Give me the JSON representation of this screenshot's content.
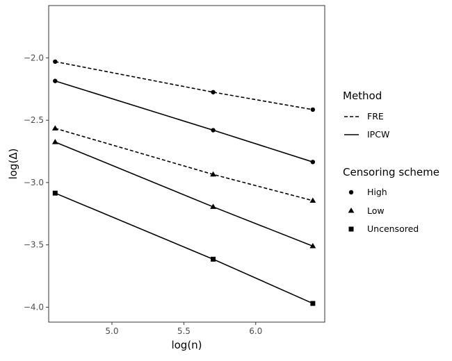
{
  "chart_data": {
    "type": "line",
    "xlabel": "log(n)",
    "ylabel": "log(Δ)",
    "xlim": [
      4.56,
      6.48
    ],
    "ylim": [
      -4.12,
      -1.58
    ],
    "x_ticks": [
      "5.0",
      "5.5",
      "6.0"
    ],
    "y_ticks": [
      "-2.0",
      "-2.5",
      "-3.0",
      "-3.5",
      "-4.0"
    ],
    "x_tick_values": [
      5.0,
      5.5,
      6.0
    ],
    "y_tick_values": [
      -2.0,
      -2.5,
      -3.0,
      -3.5,
      -4.0
    ],
    "grid": false,
    "legend_placement": "right",
    "x": [
      4.605,
      5.704,
      6.397
    ],
    "series": [
      {
        "method": "FRE",
        "scheme": "High",
        "linestyle": "dashed",
        "marker": "circle",
        "values": [
          -2.03,
          -2.275,
          -2.415
        ]
      },
      {
        "method": "IPCW",
        "scheme": "High",
        "linestyle": "solid",
        "marker": "circle",
        "values": [
          -2.185,
          -2.58,
          -2.835
        ]
      },
      {
        "method": "FRE",
        "scheme": "Low",
        "linestyle": "dashed",
        "marker": "triangle",
        "values": [
          -2.565,
          -2.935,
          -3.145
        ]
      },
      {
        "method": "IPCW",
        "scheme": "Low",
        "linestyle": "solid",
        "marker": "triangle",
        "values": [
          -2.675,
          -3.195,
          -3.51
        ]
      },
      {
        "method": "IPCW",
        "scheme": "Uncensored",
        "linestyle": "solid",
        "marker": "square",
        "values": [
          -3.085,
          -3.615,
          -3.97
        ]
      }
    ]
  },
  "legend": {
    "method_title": "Method",
    "method_items": [
      {
        "label": "FRE",
        "linestyle": "dashed"
      },
      {
        "label": "IPCW",
        "linestyle": "solid"
      }
    ],
    "scheme_title": "Censoring scheme",
    "scheme_items": [
      {
        "label": "High",
        "marker": "circle"
      },
      {
        "label": "Low",
        "marker": "triangle"
      },
      {
        "label": "Uncensored",
        "marker": "square"
      }
    ]
  },
  "colors": {
    "line": "#000000",
    "panel_border": "#333333",
    "tick_text": "#4d4d4d"
  }
}
